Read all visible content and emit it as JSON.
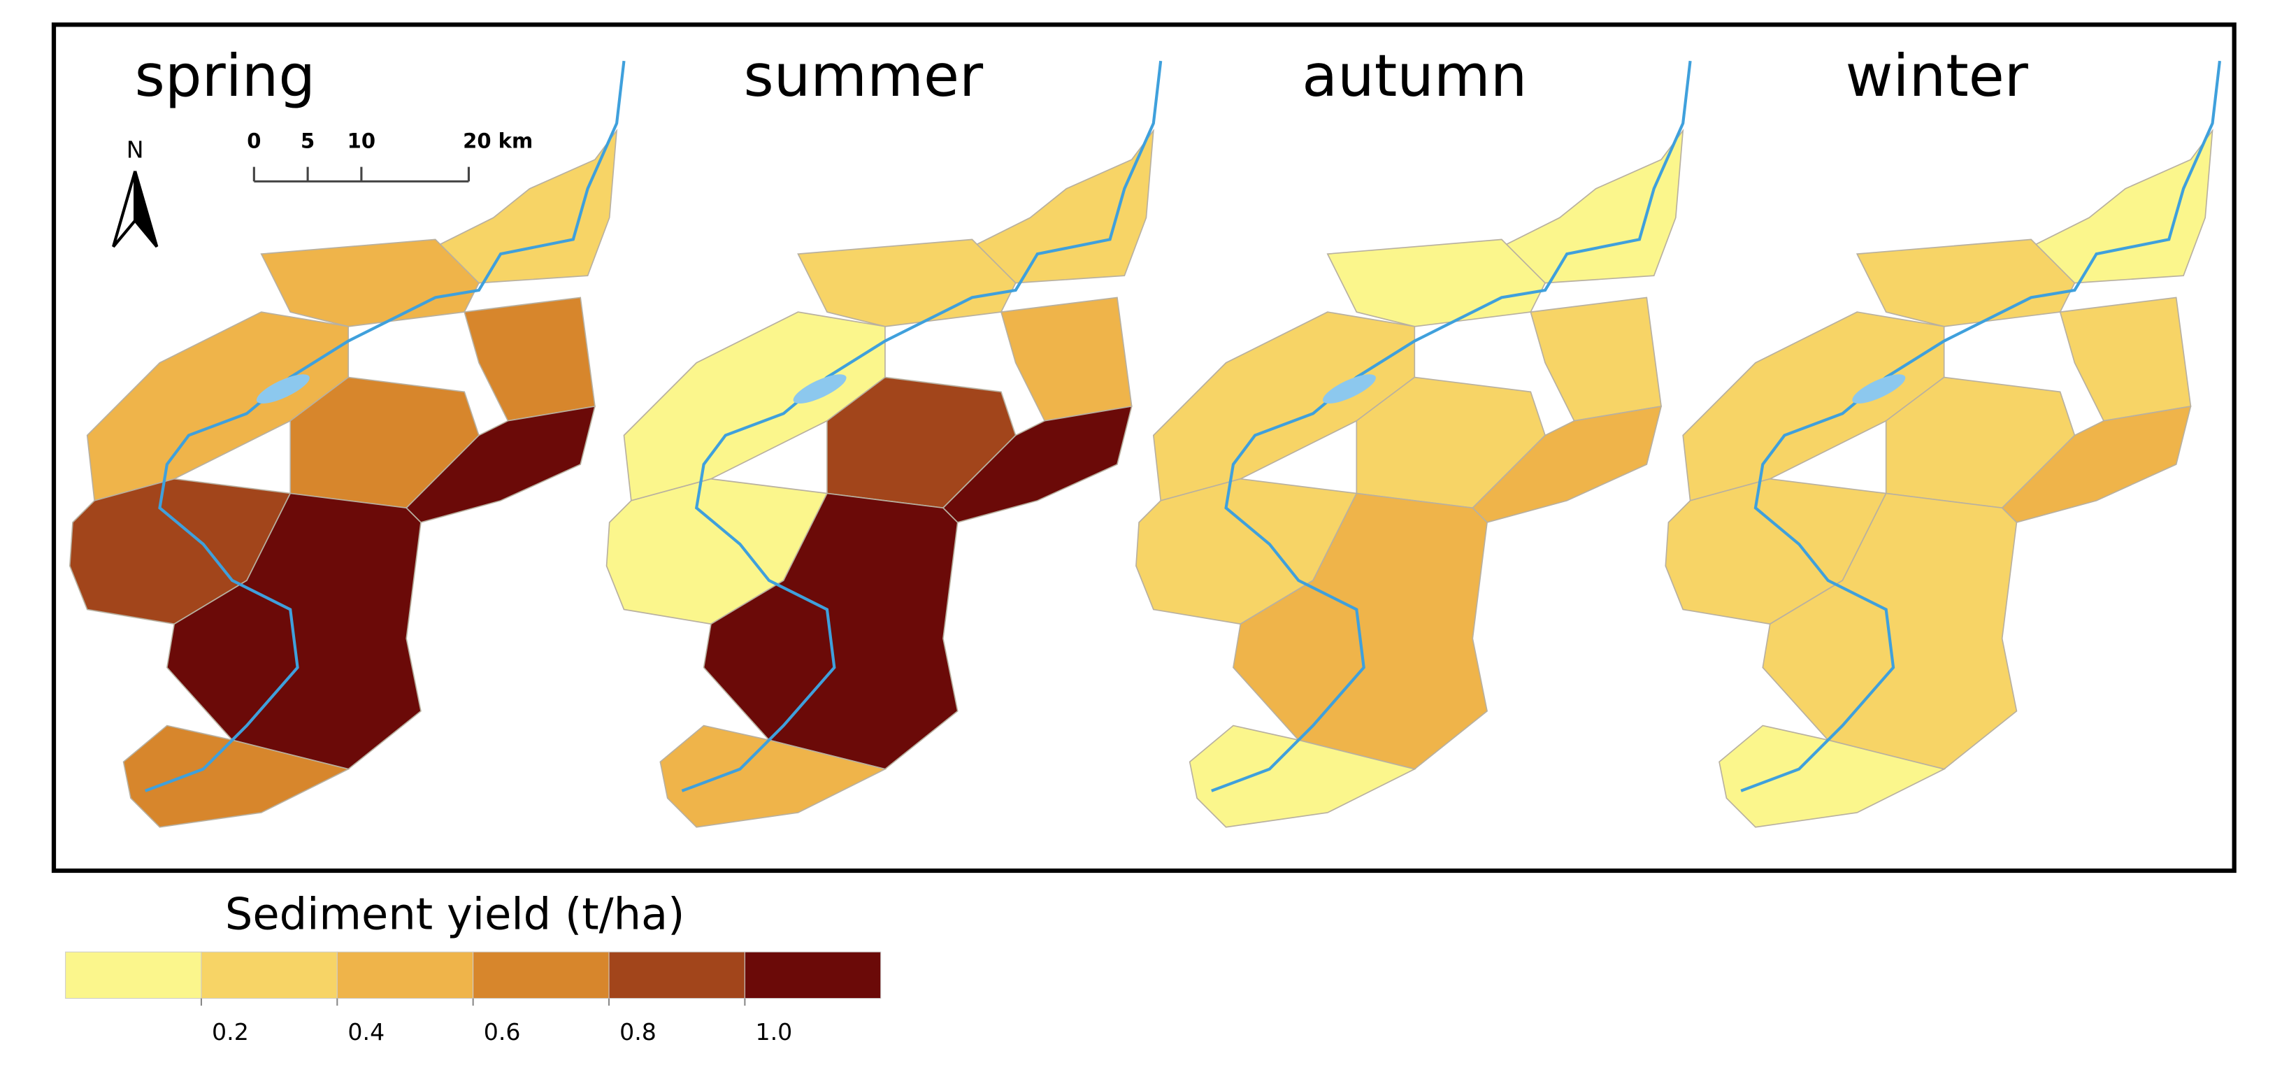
{
  "panels": [
    {
      "title": "spring",
      "values": [
        0.3,
        0.45,
        0.5,
        0.65,
        0.75,
        1.1,
        0.85,
        1.1,
        0.7
      ]
    },
    {
      "title": "summer",
      "values": [
        0.3,
        0.3,
        0.15,
        0.45,
        0.85,
        1.1,
        0.15,
        1.1,
        0.5
      ]
    },
    {
      "title": "autumn",
      "values": [
        0.1,
        0.1,
        0.3,
        0.3,
        0.3,
        0.5,
        0.3,
        0.45,
        0.1
      ]
    },
    {
      "title": "winter",
      "values": [
        0.1,
        0.25,
        0.3,
        0.3,
        0.3,
        0.5,
        0.3,
        0.3,
        0.1
      ]
    }
  ],
  "north_arrow": "N",
  "scale_bar": {
    "ticks": [
      0,
      5,
      10,
      {
        "value": 20,
        "label": "20 km"
      }
    ]
  },
  "legend": {
    "title": "Sediment yield (t/ha)",
    "colors": [
      "#fbf68c",
      "#f7d466",
      "#efb44a",
      "#d7862c",
      "#a2451b",
      "#6b0a08"
    ],
    "ticks": [
      0.2,
      0.4,
      0.6,
      0.8,
      {
        "value": 1,
        "label": "1.0"
      }
    ]
  }
}
